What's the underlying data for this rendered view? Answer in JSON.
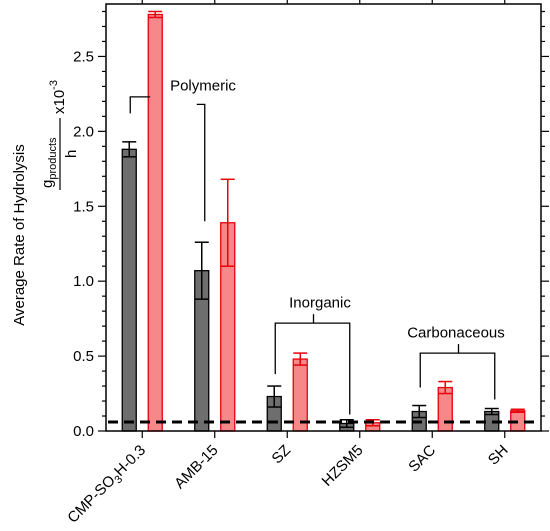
{
  "chart_data": {
    "type": "bar",
    "categories": [
      "CMP-SO3H-0.3",
      "AMB-15",
      "SZ",
      "HZSM5",
      "SAC",
      "SH"
    ],
    "category_labels": [
      {
        "main": "CMP-SO",
        "sub": "3",
        "tail": "H-0.3"
      },
      {
        "main": "AMB-15",
        "sub": "",
        "tail": ""
      },
      {
        "main": "SZ",
        "sub": "",
        "tail": ""
      },
      {
        "main": "HZSM5",
        "sub": "",
        "tail": ""
      },
      {
        "main": "SAC",
        "sub": "",
        "tail": ""
      },
      {
        "main": "SH",
        "sub": "",
        "tail": ""
      }
    ],
    "series": [
      {
        "values": [
          1.88,
          1.07,
          0.23,
          0.05,
          0.13,
          0.13
        ],
        "errors": [
          0.05,
          0.19,
          0.07,
          0.025,
          0.04,
          0.02
        ],
        "color": "#6e6e6e",
        "edge": "#000000"
      },
      {
        "values": [
          2.78,
          1.39,
          0.48,
          0.055,
          0.29,
          0.135
        ],
        "errors": [
          0.02,
          0.29,
          0.04,
          0.02,
          0.04,
          0.01
        ],
        "color": "#f6888a",
        "edge": "#e8000b"
      }
    ],
    "ylabel": {
      "line1": "Average Rate of Hydrolysis",
      "numerator": "g",
      "numerator_sub": "products",
      "denominator": "h",
      "multiplier": "x10",
      "exponent": "-3"
    },
    "ylim": [
      0,
      2.85
    ],
    "yticks": [
      "0.0",
      "0.5",
      "1.0",
      "1.5",
      "2.0",
      "2.5"
    ],
    "ytick_values": [
      0,
      0.5,
      1.0,
      1.5,
      2.0,
      2.5
    ],
    "reference_line": {
      "value": 0.06,
      "style": "dashed",
      "color": "#000000"
    },
    "annotations": [
      {
        "text": "Polymeric",
        "groups": [
          0,
          1
        ]
      },
      {
        "text": "Inorganic",
        "groups": [
          2,
          3
        ]
      },
      {
        "text": "Carbonaceous",
        "groups": [
          4,
          5
        ]
      }
    ],
    "grid": false,
    "legend": "none"
  }
}
